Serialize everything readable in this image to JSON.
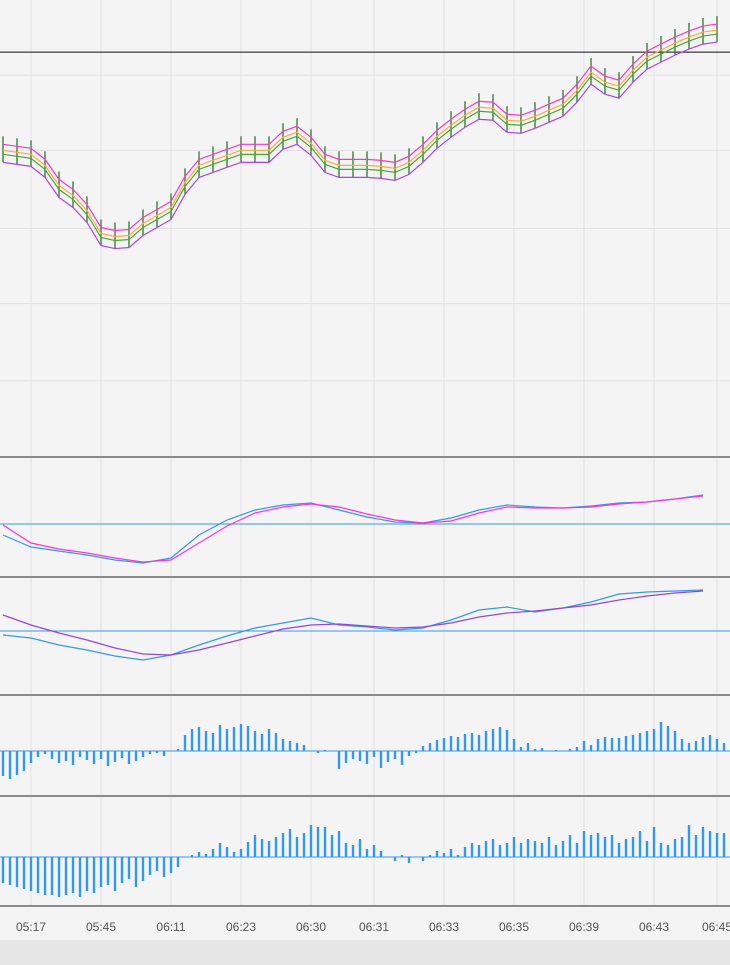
{
  "chart_data": [
    {
      "type": "ohlc",
      "color": "#2a7a2a",
      "ylim": [
        0,
        455
      ],
      "reference_line": 403,
      "grid_lines": [
        380,
        305,
        227,
        152,
        75
      ],
      "high": [
        319,
        317,
        315,
        304,
        284,
        274,
        259,
        236,
        233,
        234,
        246,
        254,
        262,
        287,
        304,
        309,
        314,
        319,
        319,
        319,
        332,
        337,
        326,
        309,
        304,
        304,
        304,
        303,
        301,
        307,
        319,
        333,
        344,
        354,
        362,
        361,
        349,
        348,
        353,
        359,
        365,
        379,
        397,
        387,
        383,
        399,
        412,
        419,
        426,
        432,
        437,
        439
      ],
      "low": [
        293,
        291,
        289,
        278,
        258,
        248,
        233,
        210,
        207,
        208,
        220,
        228,
        236,
        261,
        278,
        283,
        288,
        293,
        293,
        293,
        306,
        311,
        300,
        283,
        278,
        278,
        278,
        277,
        275,
        281,
        293,
        307,
        318,
        328,
        336,
        335,
        323,
        322,
        327,
        333,
        339,
        353,
        371,
        361,
        357,
        373,
        386,
        393,
        400,
        406,
        411,
        413
      ],
      "series": [
        {
          "color": "#ff33cc",
          "values": [
            311,
            309,
            307,
            296,
            276,
            266,
            251,
            228,
            225,
            226,
            238,
            246,
            254,
            279,
            296,
            301,
            306,
            311,
            311,
            311,
            324,
            329,
            318,
            301,
            296,
            296,
            296,
            295,
            293,
            299,
            311,
            325,
            336,
            346,
            354,
            353,
            341,
            340,
            345,
            351,
            357,
            371,
            389,
            379,
            375,
            391,
            404,
            411,
            418,
            424,
            429,
            431
          ]
        },
        {
          "color": "#ffaa33",
          "values": [
            305,
            303,
            301,
            290,
            270,
            260,
            245,
            222,
            219,
            220,
            232,
            240,
            248,
            273,
            290,
            295,
            300,
            305,
            305,
            305,
            318,
            323,
            312,
            295,
            290,
            290,
            290,
            289,
            287,
            293,
            305,
            319,
            330,
            340,
            348,
            347,
            335,
            334,
            339,
            345,
            351,
            365,
            383,
            373,
            369,
            385,
            398,
            405,
            412,
            418,
            423,
            425
          ]
        },
        {
          "color": "#44aa33",
          "values": [
            301,
            299,
            297,
            286,
            266,
            256,
            241,
            218,
            215,
            216,
            228,
            236,
            244,
            269,
            286,
            291,
            296,
            301,
            301,
            301,
            314,
            319,
            308,
            291,
            286,
            286,
            286,
            285,
            283,
            289,
            301,
            315,
            326,
            336,
            344,
            343,
            331,
            330,
            335,
            341,
            347,
            361,
            379,
            369,
            365,
            381,
            394,
            401,
            408,
            414,
            419,
            421
          ]
        },
        {
          "color": "#aa44ee",
          "values": [
            293,
            291,
            289,
            278,
            258,
            248,
            233,
            210,
            207,
            208,
            220,
            228,
            236,
            261,
            278,
            283,
            288,
            293,
            293,
            293,
            306,
            311,
            300,
            283,
            278,
            278,
            278,
            277,
            275,
            281,
            293,
            307,
            318,
            328,
            336,
            335,
            323,
            322,
            327,
            333,
            339,
            353,
            371,
            361,
            357,
            373,
            386,
            393,
            400,
            406,
            411,
            413
          ]
        }
      ]
    },
    {
      "type": "line",
      "ylim": [
        -52,
        66
      ],
      "reference_line": 0,
      "reference_color": "#3399ee",
      "series": [
        {
          "color": "#3399ee",
          "values": [
            -11,
            -23,
            -27,
            -31,
            -36,
            -39,
            -34,
            -11,
            4,
            14,
            19,
            21,
            14,
            7,
            2,
            1,
            6,
            14,
            19,
            17,
            16,
            18,
            21,
            22,
            25,
            29
          ]
        },
        {
          "color": "#ff33dd",
          "values": [
            -1,
            -19,
            -25,
            -29,
            -34,
            -38,
            -36,
            -19,
            -2,
            11,
            17,
            20,
            17,
            10,
            4,
            1,
            3,
            11,
            17,
            16,
            16,
            17,
            20,
            22,
            25,
            28
          ]
        }
      ]
    },
    {
      "type": "line",
      "ylim": [
        -63,
        53
      ],
      "reference_line": 0,
      "reference_color": "#3399ee",
      "series": [
        {
          "color": "#3399ee",
          "values": [
            -4,
            -7,
            -14,
            -19,
            -25,
            -29,
            -24,
            -14,
            -5,
            3,
            8,
            13,
            6,
            4,
            1,
            3,
            11,
            21,
            24,
            19,
            23,
            29,
            37,
            39,
            40,
            41
          ]
        },
        {
          "color": "#9944dd",
          "values": [
            16,
            6,
            -2,
            -9,
            -17,
            -23,
            -24,
            -19,
            -12,
            -5,
            2,
            6,
            7,
            5,
            3,
            4,
            8,
            14,
            18,
            20,
            23,
            26,
            31,
            35,
            38,
            40
          ]
        }
      ]
    },
    {
      "type": "bar",
      "ylim": [
        -44,
        55
      ],
      "color": "#3399ee",
      "values": [
        -25,
        -28,
        -24,
        -20,
        -12,
        -6,
        -3,
        -8,
        -12,
        -10,
        -14,
        -6,
        -9,
        -13,
        -8,
        -15,
        -11,
        -7,
        -13,
        -10,
        -6,
        -3,
        -2,
        -5,
        0,
        2,
        16,
        22,
        24,
        20,
        18,
        26,
        22,
        24,
        27,
        25,
        20,
        17,
        22,
        18,
        12,
        10,
        8,
        6,
        0,
        -2,
        1,
        0,
        -18,
        -12,
        -8,
        -10,
        -13,
        -6,
        -17,
        -11,
        -8,
        -14,
        -5,
        -2,
        5,
        8,
        11,
        13,
        15,
        14,
        17,
        18,
        16,
        20,
        22,
        24,
        21,
        12,
        4,
        8,
        2,
        3,
        0,
        1,
        0,
        2,
        4,
        10,
        6,
        12,
        14,
        13,
        13,
        15,
        16,
        18,
        20,
        22,
        29,
        25,
        20,
        12,
        8,
        10,
        14,
        16,
        12,
        8
      ]
    },
    {
      "type": "bar",
      "ylim": [
        -48,
        60
      ],
      "color": "#3399ee",
      "values": [
        -26,
        -28,
        -30,
        -32,
        -34,
        -36,
        -38,
        -38,
        -40,
        -38,
        -36,
        -40,
        -34,
        -36,
        -30,
        -28,
        -34,
        -26,
        -22,
        -30,
        -24,
        -18,
        -14,
        -20,
        -16,
        -10,
        0,
        2,
        5,
        3,
        8,
        14,
        10,
        5,
        8,
        15,
        22,
        18,
        16,
        20,
        24,
        28,
        20,
        24,
        32,
        30,
        30,
        22,
        26,
        14,
        12,
        18,
        8,
        12,
        6,
        0,
        -4,
        2,
        -6,
        0,
        -4,
        2,
        6,
        4,
        8,
        2,
        10,
        14,
        12,
        16,
        18,
        12,
        14,
        20,
        14,
        18,
        16,
        14,
        20,
        12,
        16,
        22,
        14,
        26,
        22,
        24,
        20,
        22,
        14,
        18,
        20,
        26,
        16,
        30,
        14,
        12,
        18,
        20,
        32,
        22,
        30,
        26,
        24,
        24
      ],
      "xticks": [
        {
          "value": 4,
          "label": "05:17"
        },
        {
          "value": 14,
          "label": "05:45"
        },
        {
          "value": 24,
          "label": "06:11"
        },
        {
          "value": 34,
          "label": "06:23"
        },
        {
          "value": 44,
          "label": "06:30"
        },
        {
          "value": 53,
          "label": "06:31"
        },
        {
          "value": 63,
          "label": "06:33"
        },
        {
          "value": 73,
          "label": "06:35"
        },
        {
          "value": 83,
          "label": "06:39"
        },
        {
          "value": 93,
          "label": "06:43"
        },
        {
          "value": 102,
          "label": "06:45"
        }
      ]
    }
  ]
}
